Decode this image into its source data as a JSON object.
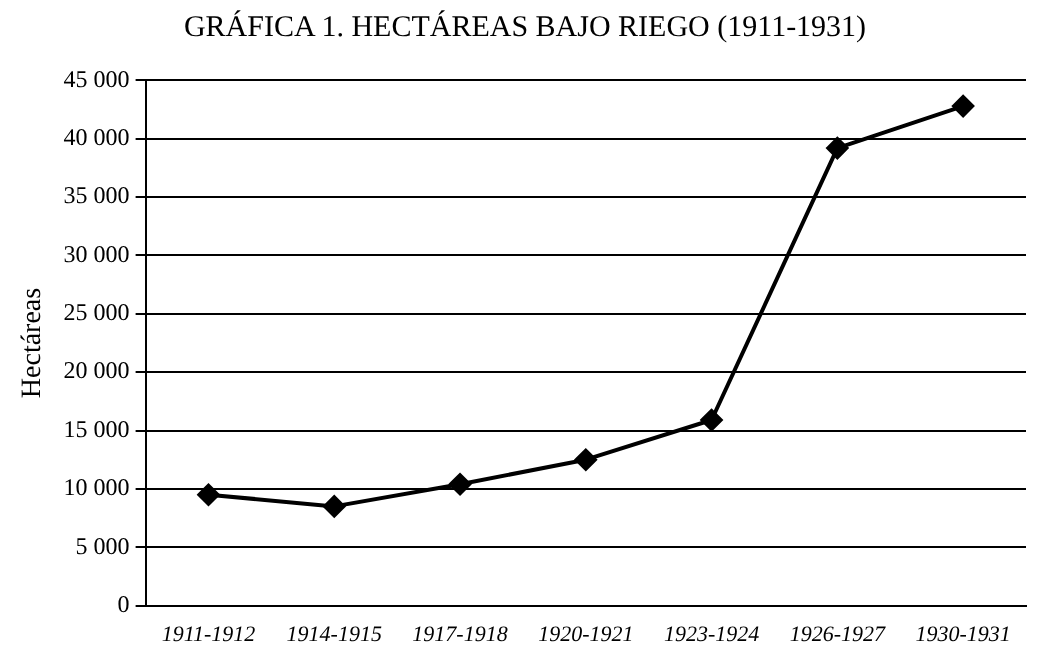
{
  "chart_data": {
    "type": "line",
    "title": "GRÁFICA 1. HECTÁREAS BAJO RIEGO (1911-1931)",
    "ylabel": "Hectáreas",
    "categories": [
      "1911-1912",
      "1914-1915",
      "1917-1918",
      "1920-1921",
      "1923-1924",
      "1926-1927",
      "1930-1931"
    ],
    "series": [
      {
        "color": "#000000",
        "values": [
          9500,
          8500,
          10400,
          12500,
          15900,
          39200,
          42800
        ]
      }
    ],
    "ylim": [
      0,
      45000
    ],
    "yticks": [
      0,
      {
        "value": 5000,
        "label": "5 000"
      },
      {
        "value": 10000,
        "label": "10 000"
      },
      {
        "value": 15000,
        "label": "15 000"
      },
      {
        "value": 20000,
        "label": "20 000"
      },
      {
        "value": 25000,
        "label": "25 000"
      },
      {
        "value": 30000,
        "label": "30 000"
      },
      {
        "value": 35000,
        "label": "35 000"
      },
      {
        "value": 40000,
        "label": "40 000"
      },
      {
        "value": 45000,
        "label": "45 000"
      }
    ],
    "grid": "y",
    "legend": false,
    "marker": "diamond",
    "line_style": "solid"
  }
}
